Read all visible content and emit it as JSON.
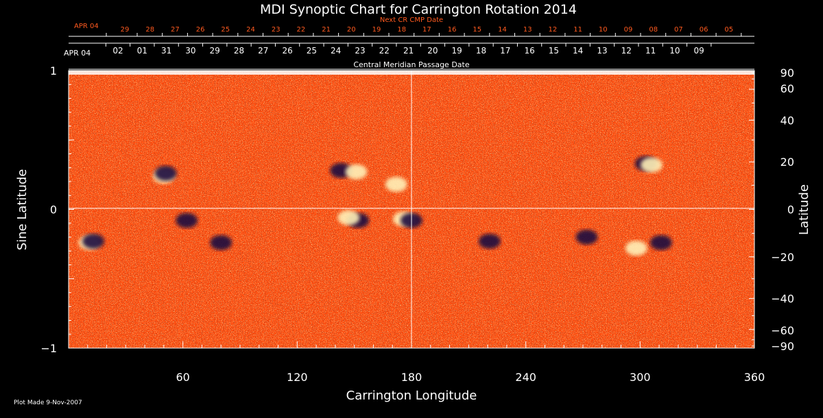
{
  "chart_data": {
    "type": "heatmap",
    "title": "MDI Synoptic Chart for Carrington Rotation 2014",
    "xlabel": "Carrington Longitude",
    "ylabel_left": "Sine Latitude",
    "ylabel_right": "Latitude",
    "xlim": [
      0,
      360
    ],
    "ylim": [
      -1,
      1
    ],
    "x_ticks": [
      60,
      120,
      180,
      240,
      300,
      360
    ],
    "y_left_ticks": [
      {
        "value": 1,
        "label": "1"
      },
      {
        "value": 0,
        "label": "0"
      },
      {
        "value": -1,
        "label": "−1"
      }
    ],
    "y_right_ticks": [
      90,
      60,
      40,
      20,
      0,
      -20,
      -40,
      -60,
      -90
    ],
    "y_right_tick_labels": [
      "90",
      "60",
      "40",
      "20",
      "0",
      "−20",
      "−40",
      "−60",
      "−90"
    ],
    "central_meridian_axis": {
      "title": "Central Meridian Passage Date",
      "start_label": "APR 04",
      "labels": [
        "02",
        "01",
        "31",
        "30",
        "29",
        "28",
        "27",
        "26",
        "25",
        "24",
        "23",
        "22",
        "21",
        "20",
        "19",
        "18",
        "17",
        "16",
        "15",
        "14",
        "13",
        "12",
        "11",
        "10",
        "09"
      ]
    },
    "next_cr_axis": {
      "title": "Next CR CMP Date",
      "start_label": "APR 04",
      "labels": [
        "29",
        "28",
        "27",
        "26",
        "25",
        "24",
        "23",
        "22",
        "21",
        "20",
        "19",
        "18",
        "17",
        "16",
        "15",
        "14",
        "13",
        "12",
        "11",
        "10",
        "09",
        "08",
        "07",
        "06",
        "05"
      ]
    },
    "active_regions": [
      {
        "lon": 50,
        "sinlat": 0.24,
        "polarity": "positive"
      },
      {
        "lon": 51,
        "sinlat": 0.26,
        "polarity": "negative"
      },
      {
        "lon": 143,
        "sinlat": 0.28,
        "polarity": "negative"
      },
      {
        "lon": 151,
        "sinlat": 0.27,
        "polarity": "positive"
      },
      {
        "lon": 172,
        "sinlat": 0.18,
        "polarity": "positive"
      },
      {
        "lon": 176,
        "sinlat": -0.07,
        "polarity": "positive"
      },
      {
        "lon": 180,
        "sinlat": -0.08,
        "polarity": "negative"
      },
      {
        "lon": 152,
        "sinlat": -0.08,
        "polarity": "negative"
      },
      {
        "lon": 147,
        "sinlat": -0.06,
        "polarity": "positive"
      },
      {
        "lon": 11,
        "sinlat": -0.24,
        "polarity": "positive"
      },
      {
        "lon": 13,
        "sinlat": -0.23,
        "polarity": "negative"
      },
      {
        "lon": 62,
        "sinlat": -0.08,
        "polarity": "negative"
      },
      {
        "lon": 80,
        "sinlat": -0.24,
        "polarity": "negative"
      },
      {
        "lon": 303,
        "sinlat": 0.33,
        "polarity": "negative"
      },
      {
        "lon": 306,
        "sinlat": 0.32,
        "polarity": "positive"
      },
      {
        "lon": 298,
        "sinlat": -0.28,
        "polarity": "positive"
      },
      {
        "lon": 311,
        "sinlat": -0.24,
        "polarity": "negative"
      },
      {
        "lon": 221,
        "sinlat": -0.23,
        "polarity": "negative"
      },
      {
        "lon": 272,
        "sinlat": -0.2,
        "polarity": "negative"
      }
    ],
    "colors": {
      "background": "#000000",
      "field": "#ff4a0c",
      "positive": "#fff1b8",
      "negative": "#1a1040"
    }
  },
  "footer": {
    "plot_made": "Plot Made  9-Nov-2007"
  }
}
